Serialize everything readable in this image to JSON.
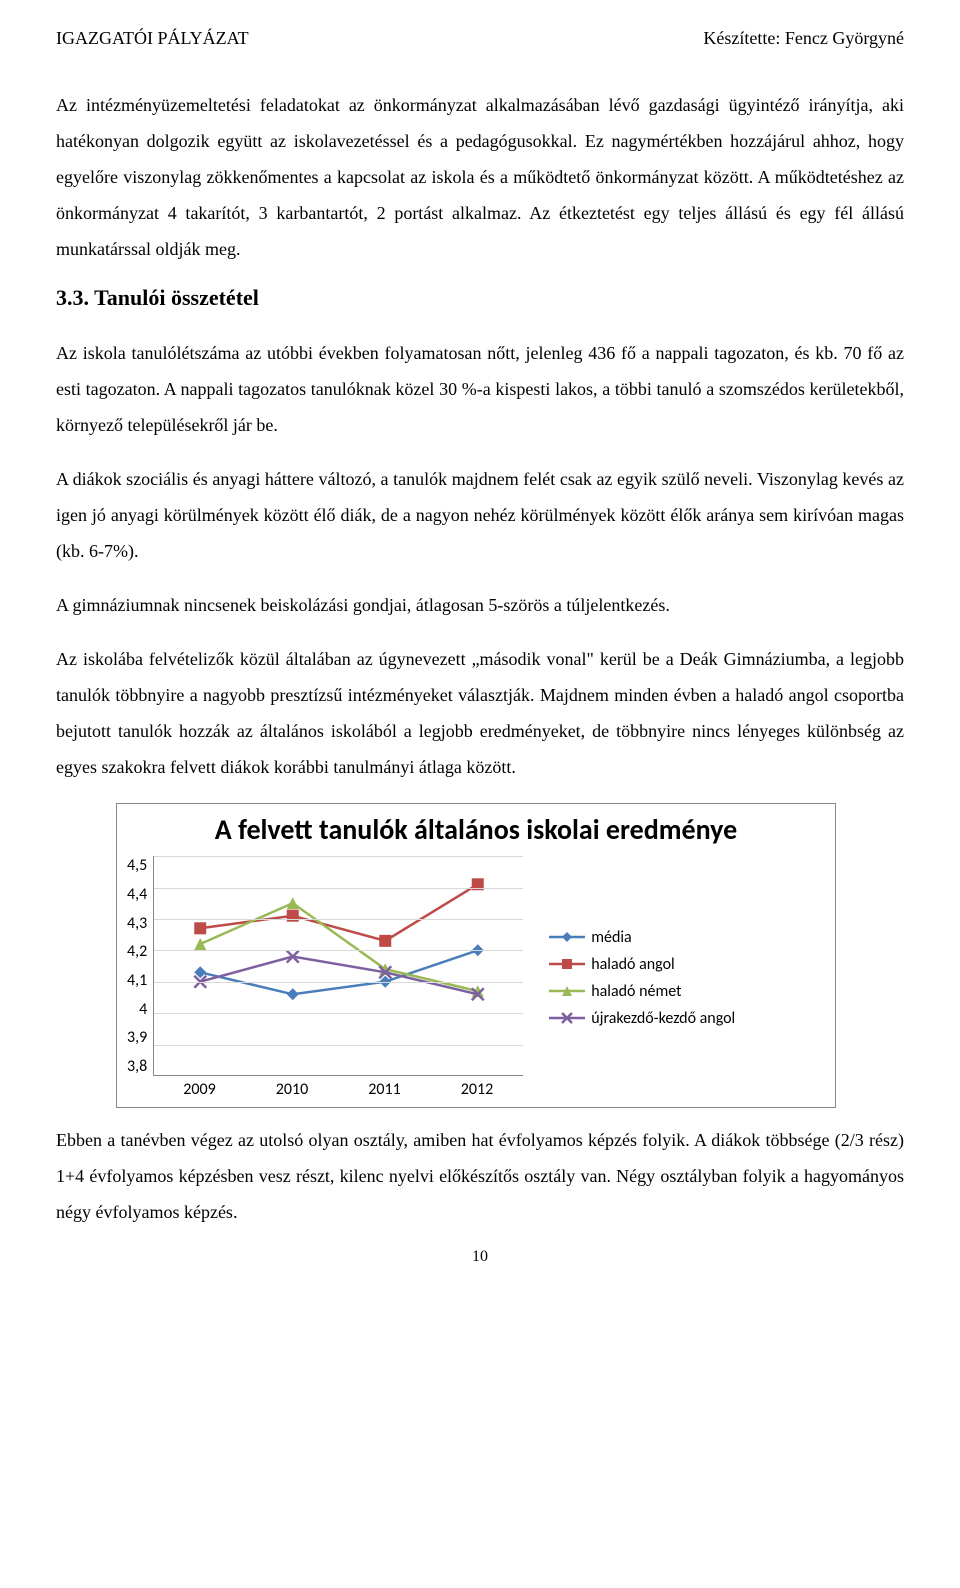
{
  "header": {
    "left": "IGAZGATÓI PÁLYÁZAT",
    "right": "Készítette: Fencz Györgyné"
  },
  "paragraphs": {
    "p1": "Az intézményüzemeltetési feladatokat az önkormányzat alkalmazásában lévő gazdasági ügyintéző irányítja, aki hatékonyan dolgozik együtt az iskolavezetéssel és a pedagógusokkal. Ez nagymértékben hozzájárul ahhoz, hogy egyelőre viszonylag zökkenőmentes a kapcsolat az iskola és a működtető önkormányzat között. A működtetéshez az önkormányzat 4 takarítót, 3 karbantartót, 2 portást alkalmaz. Az étkeztetést egy teljes állású és egy fél állású munkatárssal oldják meg.",
    "p2": "Az iskola tanulólétszáma az utóbbi években folyamatosan nőtt, jelenleg 436 fő a nappali tagozaton, és kb. 70 fő az esti tagozaton. A nappali tagozatos tanulóknak közel 30 %-a kispesti lakos, a többi tanuló a szomszédos kerületekből, környező településekről jár be.",
    "p3": "A diákok szociális és anyagi háttere változó, a tanulók majdnem felét csak az egyik szülő neveli. Viszonylag kevés az igen jó anyagi körülmények között élő diák, de a nagyon nehéz körülmények között élők aránya sem kirívóan magas (kb. 6-7%).",
    "p4": "A gimnáziumnak nincsenek beiskolázási gondjai, átlagosan 5-szörös a túljelentkezés.",
    "p5": "Az iskolába felvételizők közül általában az úgynevezett „második vonal\" kerül be a Deák Gimnáziumba, a legjobb tanulók többnyire a nagyobb presztízsű intézményeket választják. Majdnem minden évben a haladó angol csoportba bejutott tanulók hozzák az általános iskolából a legjobb eredményeket, de többnyire nincs lényeges különbség az egyes szakokra felvett diákok korábbi tanulmányi átlaga között."
  },
  "heading": "3.3. Tanulói összetétel",
  "chart": {
    "type": "line",
    "title": "A felvett tanulók általános iskolai eredménye",
    "x_categories": [
      "2009",
      "2010",
      "2011",
      "2012"
    ],
    "y_ticks": [
      "4,5",
      "4,4",
      "4,3",
      "4,2",
      "4,1",
      "4",
      "3,9",
      "3,8"
    ],
    "ylim": [
      3.8,
      4.5
    ],
    "grid_color": "#d9d9d9",
    "border_color": "#888888",
    "background_color": "#ffffff",
    "title_fontsize": 28,
    "axis_fontsize": 16,
    "axis_font": "Calibri",
    "marker_size": 6,
    "line_width": 2.5,
    "series": [
      {
        "name": "média",
        "color": "#4a7ebb",
        "marker": "diamond",
        "values": [
          4.13,
          4.06,
          4.1,
          4.2
        ]
      },
      {
        "name": "haladó angol",
        "color": "#be4b48",
        "marker": "square",
        "values": [
          4.27,
          4.31,
          4.23,
          4.41
        ]
      },
      {
        "name": "haladó német",
        "color": "#98b954",
        "marker": "triangle",
        "values": [
          4.22,
          4.35,
          4.14,
          4.07
        ]
      },
      {
        "name": "újrakezdő-kezdő angol",
        "color": "#7d60a0",
        "marker": "x",
        "values": [
          4.1,
          4.18,
          4.13,
          4.06
        ]
      }
    ]
  },
  "after_chart": "Ebben a tanévben végez az utolsó olyan osztály, amiben hat évfolyamos képzés folyik. A diákok többsége (2/3 rész) 1+4 évfolyamos képzésben vesz részt, kilenc nyelvi előkészítős osztály van. Négy osztályban folyik a hagyományos négy évfolyamos képzés.",
  "page_number": "10"
}
